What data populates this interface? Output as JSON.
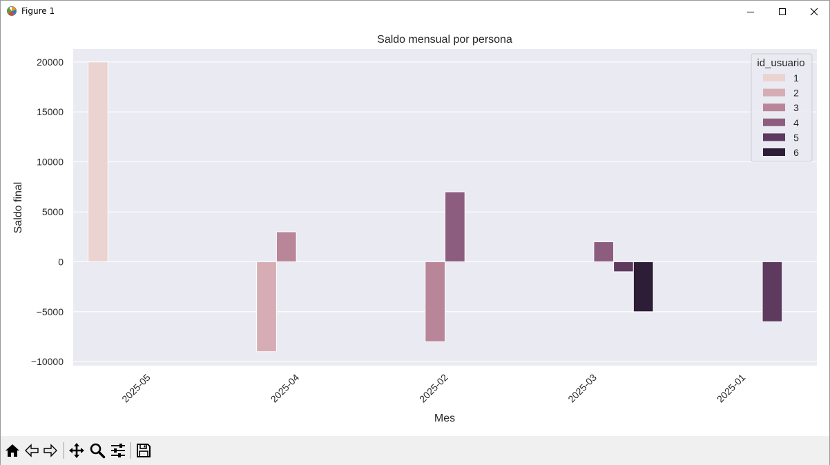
{
  "window": {
    "title": "Figure 1",
    "icons": {
      "app": "matplotlib-icon",
      "minimize": "minimize-icon",
      "maximize": "maximize-icon",
      "close": "close-icon"
    }
  },
  "toolbar": {
    "buttons": [
      {
        "name": "home-button",
        "icon": "home-icon"
      },
      {
        "name": "back-button",
        "icon": "back-arrow-icon"
      },
      {
        "name": "forward-button",
        "icon": "forward-arrow-icon"
      },
      {
        "name": "pan-button",
        "icon": "move-icon"
      },
      {
        "name": "zoom-button",
        "icon": "magnifier-icon"
      },
      {
        "name": "configure-subplots-button",
        "icon": "sliders-icon"
      },
      {
        "name": "save-button",
        "icon": "floppy-disk-icon"
      }
    ]
  },
  "chart_data": {
    "type": "bar",
    "title": "Saldo mensual por persona",
    "xlabel": "Mes",
    "ylabel": "Saldo final",
    "categories": [
      "2025-05",
      "2025-04",
      "2025-02",
      "2025-03",
      "2025-01"
    ],
    "ylim": [
      -10400,
      21300
    ],
    "yticks": [
      -10000,
      -5000,
      0,
      5000,
      10000,
      15000,
      20000
    ],
    "ytick_labels": [
      "−10000",
      "−5000",
      "0",
      "5000",
      "10000",
      "15000",
      "20000"
    ],
    "grid": true,
    "legend": {
      "title": "id_usuario",
      "placement": "top-right"
    },
    "series": [
      {
        "name": "1",
        "color": "#ead3d0",
        "values": [
          20000,
          null,
          null,
          null,
          null
        ]
      },
      {
        "name": "2",
        "color": "#d6adb5",
        "values": [
          null,
          -9000,
          null,
          null,
          null
        ]
      },
      {
        "name": "3",
        "color": "#b98599",
        "values": [
          null,
          3000,
          -8000,
          null,
          null
        ]
      },
      {
        "name": "4",
        "color": "#8d5d80",
        "values": [
          null,
          null,
          7000,
          2000,
          null
        ]
      },
      {
        "name": "5",
        "color": "#5d3a5e",
        "values": [
          null,
          null,
          null,
          -1000,
          -6000
        ]
      },
      {
        "name": "6",
        "color": "#2d1d36",
        "values": [
          null,
          null,
          null,
          -5000,
          null
        ]
      }
    ]
  }
}
